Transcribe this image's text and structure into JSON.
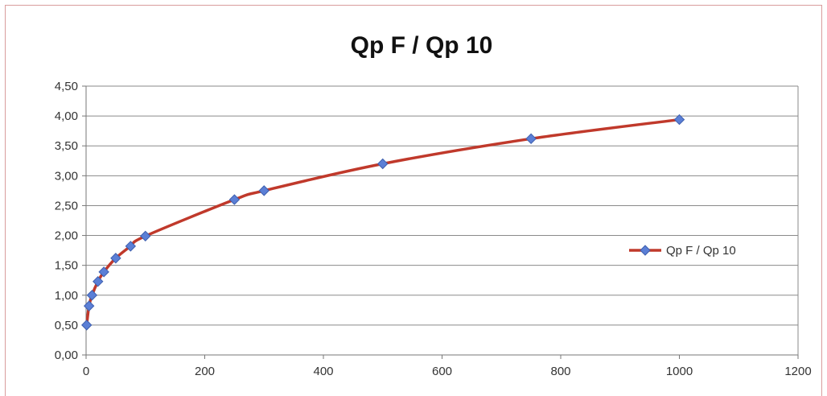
{
  "chart_data": {
    "type": "scatter",
    "title": "Qp F / Qp 10",
    "xlabel": "",
    "ylabel": "",
    "xlim": [
      0,
      1200
    ],
    "ylim": [
      0,
      4.5
    ],
    "x_ticks": [
      "0",
      "200",
      "400",
      "600",
      "800",
      "1000",
      "1200"
    ],
    "y_ticks": [
      "0,00",
      "0,50",
      "1,00",
      "1,50",
      "2,00",
      "2,50",
      "3,00",
      "3,50",
      "4,00",
      "4,50"
    ],
    "x_tick_values": [
      0,
      200,
      400,
      600,
      800,
      1000,
      1200
    ],
    "y_tick_values": [
      0,
      0.5,
      1.0,
      1.5,
      2.0,
      2.5,
      3.0,
      3.5,
      4.0,
      4.5
    ],
    "grid": true,
    "legend_position": "right",
    "series": [
      {
        "name": "Qp F / Qp 10",
        "line_color": "#c0392b",
        "marker_color": "#5b7fd6",
        "x": [
          1,
          5,
          10,
          20,
          30,
          50,
          75,
          100,
          250,
          300,
          500,
          750,
          1000
        ],
        "y": [
          0.5,
          0.82,
          1.0,
          1.23,
          1.39,
          1.62,
          1.82,
          1.99,
          2.6,
          2.75,
          3.2,
          3.62,
          3.94
        ]
      }
    ]
  }
}
